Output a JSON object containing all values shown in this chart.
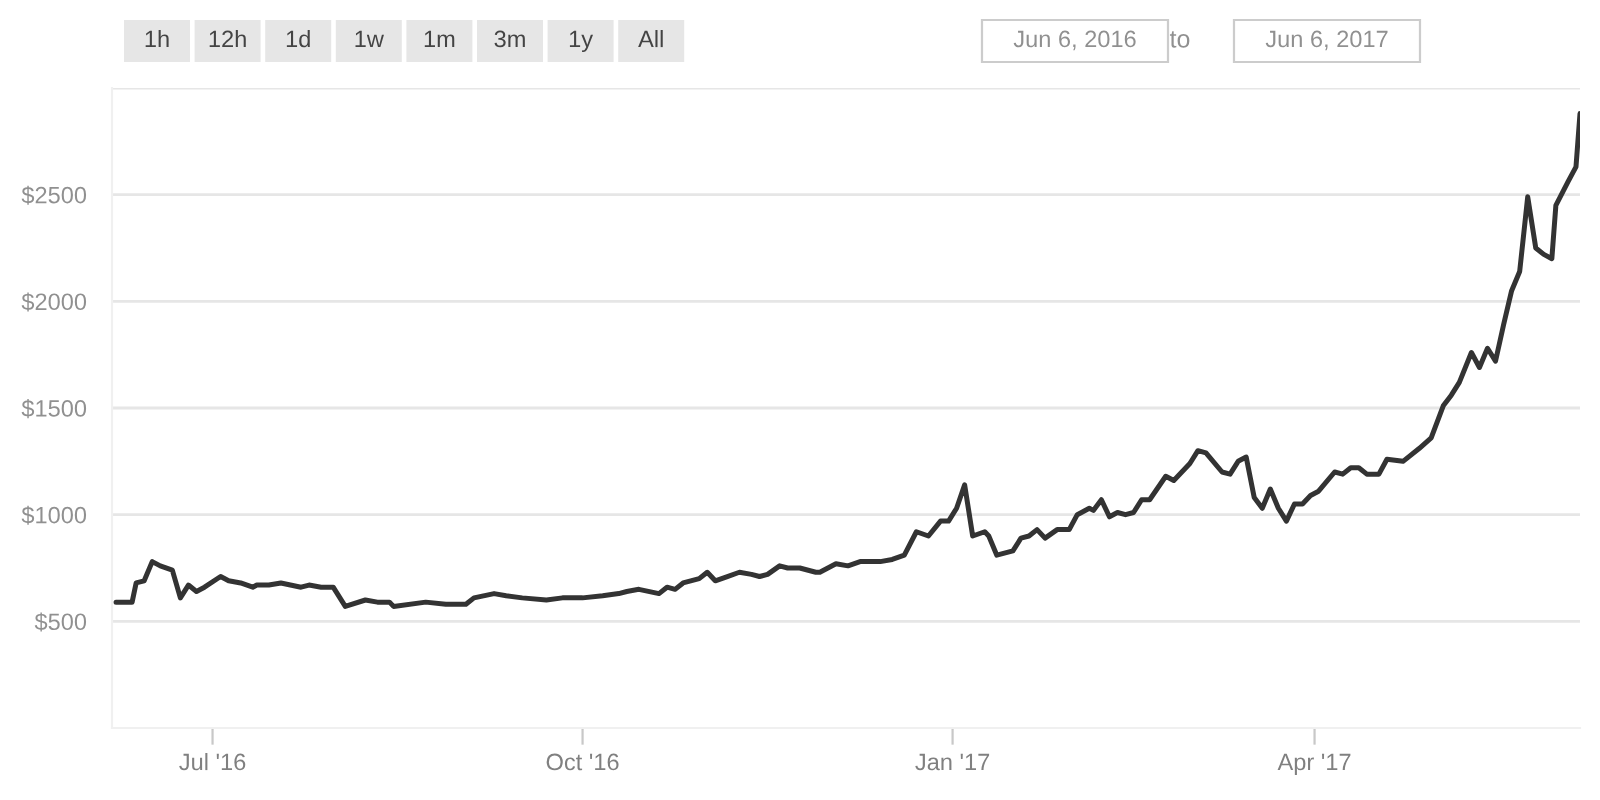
{
  "chart_data": {
    "type": "line",
    "x": [
      "2016-06-07",
      "2016-06-11",
      "2016-06-12",
      "2016-06-14",
      "2016-06-16",
      "2016-06-18",
      "2016-06-21",
      "2016-06-23",
      "2016-06-25",
      "2016-06-27",
      "2016-06-29",
      "2016-07-03",
      "2016-07-05",
      "2016-07-08",
      "2016-07-11",
      "2016-07-12",
      "2016-07-15",
      "2016-07-18",
      "2016-07-23",
      "2016-07-25",
      "2016-07-28",
      "2016-07-31",
      "2016-08-03",
      "2016-08-08",
      "2016-08-11",
      "2016-08-14",
      "2016-08-15",
      "2016-08-23",
      "2016-08-28",
      "2016-09-02",
      "2016-09-04",
      "2016-09-09",
      "2016-09-12",
      "2016-09-16",
      "2016-09-22",
      "2016-09-26",
      "2016-10-01",
      "2016-10-06",
      "2016-10-10",
      "2016-10-12",
      "2016-10-15",
      "2016-10-20",
      "2016-10-22",
      "2016-10-24",
      "2016-10-26",
      "2016-10-30",
      "2016-11-01",
      "2016-11-03",
      "2016-11-06",
      "2016-11-09",
      "2016-11-12",
      "2016-11-14",
      "2016-11-16",
      "2016-11-19",
      "2016-11-21",
      "2016-11-24",
      "2016-11-28",
      "2016-11-29",
      "2016-12-03",
      "2016-12-06",
      "2016-12-09",
      "2016-12-14",
      "2016-12-17",
      "2016-12-20",
      "2016-12-23",
      "2016-12-26",
      "2016-12-29",
      "2016-12-31",
      "2017-01-02",
      "2017-01-04",
      "2017-01-06",
      "2017-01-09",
      "2017-01-10",
      "2017-01-12",
      "2017-01-16",
      "2017-01-18",
      "2017-01-20",
      "2017-01-22",
      "2017-01-24",
      "2017-01-27",
      "2017-01-30",
      "2017-02-01",
      "2017-02-04",
      "2017-02-05",
      "2017-02-07",
      "2017-02-09",
      "2017-02-11",
      "2017-02-13",
      "2017-02-15",
      "2017-02-17",
      "2017-02-19",
      "2017-02-23",
      "2017-02-25",
      "2017-03-01",
      "2017-03-03",
      "2017-03-05",
      "2017-03-09",
      "2017-03-11",
      "2017-03-13",
      "2017-03-15",
      "2017-03-17",
      "2017-03-19",
      "2017-03-21",
      "2017-03-23",
      "2017-03-25",
      "2017-03-27",
      "2017-03-29",
      "2017-03-31",
      "2017-04-02",
      "2017-04-06",
      "2017-04-08",
      "2017-04-10",
      "2017-04-12",
      "2017-04-14",
      "2017-04-17",
      "2017-04-19",
      "2017-04-23",
      "2017-04-27",
      "2017-04-30",
      "2017-05-03",
      "2017-05-05",
      "2017-05-07",
      "2017-05-10",
      "2017-05-12",
      "2017-05-14",
      "2017-05-16",
      "2017-05-18",
      "2017-05-20",
      "2017-05-22",
      "2017-05-24",
      "2017-05-26",
      "2017-05-28",
      "2017-05-30",
      "2017-05-31",
      "2017-06-03",
      "2017-06-05",
      "2017-06-06"
    ],
    "series": [
      {
        "color": "#333333",
        "values": [
          590,
          590,
          680,
          690,
          780,
          760,
          740,
          610,
          670,
          640,
          660,
          710,
          690,
          680,
          660,
          670,
          670,
          680,
          660,
          670,
          660,
          660,
          570,
          600,
          590,
          590,
          570,
          590,
          580,
          580,
          610,
          630,
          620,
          610,
          600,
          610,
          610,
          620,
          630,
          640,
          650,
          630,
          660,
          650,
          680,
          700,
          730,
          690,
          710,
          730,
          720,
          710,
          720,
          760,
          750,
          750,
          730,
          730,
          770,
          760,
          780,
          780,
          790,
          810,
          920,
          900,
          970,
          970,
          1030,
          1140,
          900,
          920,
          900,
          810,
          830,
          890,
          900,
          930,
          890,
          930,
          930,
          1000,
          1030,
          1020,
          1070,
          990,
          1010,
          1000,
          1010,
          1070,
          1070,
          1180,
          1160,
          1240,
          1300,
          1290,
          1200,
          1190,
          1250,
          1270,
          1080,
          1030,
          1120,
          1030,
          970,
          1050,
          1050,
          1090,
          1110,
          1200,
          1190,
          1220,
          1220,
          1190,
          1190,
          1260,
          1250,
          1310,
          1360,
          1510,
          1560,
          1620,
          1760,
          1690,
          1780,
          1720,
          1890,
          2050,
          2140,
          2490,
          2250,
          2220,
          2200,
          2450,
          2560,
          2630,
          2880
        ]
      }
    ],
    "xlim": [
      "2016-06-06",
      "2017-06-06"
    ],
    "xticks": [
      {
        "value": "2016-07-01",
        "label": "Jul '16"
      },
      {
        "value": "2016-10-01",
        "label": "Oct '16"
      },
      {
        "value": "2017-01-01",
        "label": "Jan '17"
      },
      {
        "value": "2017-04-01",
        "label": "Apr '17"
      }
    ],
    "ylim": [
      0,
      3000
    ],
    "yticks": [
      {
        "value": 500,
        "label": "$500"
      },
      {
        "value": 1000,
        "label": "$1000"
      },
      {
        "value": 1500,
        "label": "$1500"
      },
      {
        "value": 2000,
        "label": "$2000"
      },
      {
        "value": 2500,
        "label": "$2500"
      },
      {
        "value": 3000,
        "label": null
      }
    ],
    "grid": "y",
    "marker": "none",
    "line_style": "solid",
    "annotations": [
      "1h",
      "12h",
      "1d",
      "1w",
      "1m",
      "3m",
      "1y",
      "All",
      "Jun 6, 2016",
      "to",
      "Jun 6, 2017"
    ]
  }
}
